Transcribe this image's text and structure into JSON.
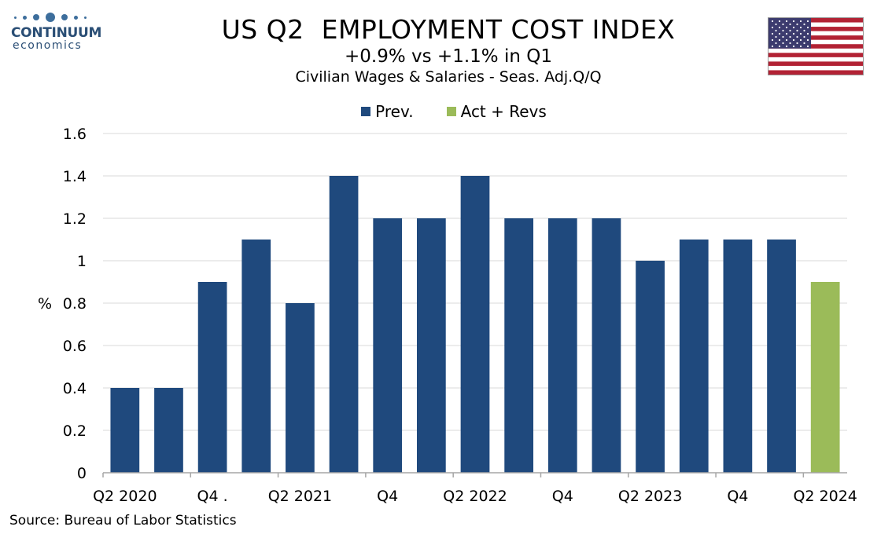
{
  "brand": {
    "name": "CONTINUUM",
    "sub": "economics"
  },
  "header": {
    "title": "US Q2  EMPLOYMENT COST INDEX",
    "subtitle": "+0.9% vs +1.1% in Q1",
    "subtitle2": "Civilian Wages & Salaries - Seas. Adj.Q/Q"
  },
  "flag_icon": "us-flag-icon",
  "colors": {
    "prev": "#1f497d",
    "act": "#9bbb59",
    "grid": "#d9d9d9",
    "axis": "#a6a6a6"
  },
  "source": "Source: Bureau of Labor Statistics",
  "chart_data": {
    "type": "bar",
    "ylabel": "%",
    "ylim": [
      0,
      1.6
    ],
    "yticks": [
      "0",
      "0.2",
      "0.4",
      "0.6",
      "0.8",
      "1",
      "1.2",
      "1.4",
      "1.6"
    ],
    "grid": true,
    "legend_position": "top-center",
    "x_tick_labels": [
      {
        "label": "Q2 2020",
        "index": 0
      },
      {
        "label": "Q4 .",
        "index": 2
      },
      {
        "label": "Q2 2021",
        "index": 4
      },
      {
        "label": "Q4",
        "index": 6
      },
      {
        "label": "Q2 2022",
        "index": 8
      },
      {
        "label": "Q4",
        "index": 10
      },
      {
        "label": "Q2 2023",
        "index": 12
      },
      {
        "label": "Q4",
        "index": 14
      },
      {
        "label": "Q2 2024",
        "index": 16
      }
    ],
    "series": [
      {
        "name": "Prev.",
        "values": [
          0.4,
          0.4,
          0.9,
          1.1,
          0.8,
          1.4,
          1.2,
          1.2,
          1.4,
          1.2,
          1.2,
          1.2,
          1.0,
          1.1,
          1.1,
          1.1,
          null
        ]
      },
      {
        "name": "Act + Revs",
        "values": [
          null,
          null,
          null,
          null,
          null,
          null,
          null,
          null,
          null,
          null,
          null,
          null,
          null,
          null,
          null,
          null,
          0.9
        ]
      }
    ]
  }
}
